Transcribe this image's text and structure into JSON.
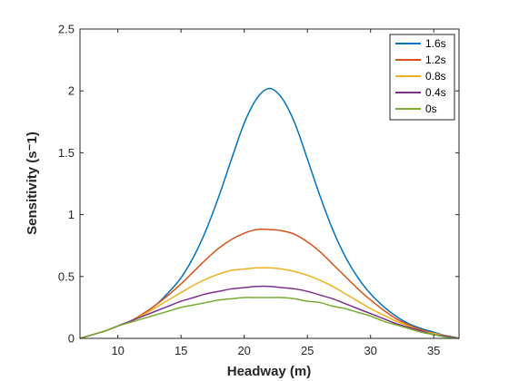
{
  "chart_data": {
    "type": "line",
    "title": "",
    "xlabel": "Headway (m)",
    "ylabel": "Sensitivity (s⁻1)",
    "xlim": [
      7,
      37
    ],
    "ylim": [
      0,
      2.5
    ],
    "xticks": [
      10,
      15,
      20,
      25,
      30,
      35
    ],
    "yticks": [
      0,
      0.5,
      1,
      1.5,
      2,
      2.5
    ],
    "xtick_labels": [
      "10",
      "15",
      "20",
      "25",
      "30",
      "35"
    ],
    "ytick_labels": [
      "0",
      "0.5",
      "1",
      "1.5",
      "2",
      "2.5"
    ],
    "grid": false,
    "legend_position": "top-right",
    "x": [
      7,
      8,
      9,
      10,
      11,
      12,
      13,
      14,
      15,
      16,
      17,
      18,
      19,
      20,
      21,
      22,
      23,
      24,
      25,
      26,
      27,
      28,
      29,
      30,
      31,
      32,
      33,
      34,
      35,
      36,
      37
    ],
    "series": [
      {
        "name": "1.6s",
        "color": "#0072BD",
        "values": [
          0,
          0.03,
          0.06,
          0.1,
          0.14,
          0.2,
          0.27,
          0.37,
          0.49,
          0.66,
          0.88,
          1.15,
          1.45,
          1.74,
          1.94,
          2.02,
          1.94,
          1.74,
          1.45,
          1.15,
          0.88,
          0.66,
          0.49,
          0.36,
          0.26,
          0.18,
          0.12,
          0.08,
          0.05,
          0.02,
          0
        ]
      },
      {
        "name": "1.2s",
        "color": "#D95319",
        "values": [
          0,
          0.03,
          0.06,
          0.1,
          0.14,
          0.2,
          0.27,
          0.35,
          0.44,
          0.54,
          0.64,
          0.73,
          0.8,
          0.85,
          0.88,
          0.88,
          0.87,
          0.84,
          0.78,
          0.7,
          0.6,
          0.5,
          0.4,
          0.31,
          0.23,
          0.16,
          0.11,
          0.07,
          0.04,
          0.02,
          0
        ]
      },
      {
        "name": "0.8s",
        "color": "#EDB120",
        "values": [
          0,
          0.03,
          0.06,
          0.1,
          0.14,
          0.19,
          0.25,
          0.31,
          0.37,
          0.43,
          0.48,
          0.52,
          0.55,
          0.56,
          0.57,
          0.57,
          0.56,
          0.54,
          0.51,
          0.47,
          0.42,
          0.36,
          0.3,
          0.24,
          0.19,
          0.14,
          0.1,
          0.06,
          0.04,
          0.02,
          0
        ]
      },
      {
        "name": "0.4s",
        "color": "#7E2F8E",
        "values": [
          0,
          0.03,
          0.06,
          0.1,
          0.14,
          0.18,
          0.22,
          0.26,
          0.3,
          0.33,
          0.36,
          0.38,
          0.4,
          0.41,
          0.42,
          0.42,
          0.41,
          0.4,
          0.38,
          0.35,
          0.32,
          0.28,
          0.24,
          0.2,
          0.16,
          0.12,
          0.09,
          0.06,
          0.03,
          0.02,
          0
        ]
      },
      {
        "name": "0s",
        "color": "#77AC30",
        "values": [
          0,
          0.03,
          0.06,
          0.1,
          0.13,
          0.16,
          0.19,
          0.22,
          0.25,
          0.27,
          0.29,
          0.31,
          0.32,
          0.33,
          0.33,
          0.33,
          0.33,
          0.32,
          0.3,
          0.29,
          0.26,
          0.24,
          0.21,
          0.18,
          0.14,
          0.11,
          0.08,
          0.05,
          0.03,
          0.01,
          0
        ]
      }
    ]
  }
}
